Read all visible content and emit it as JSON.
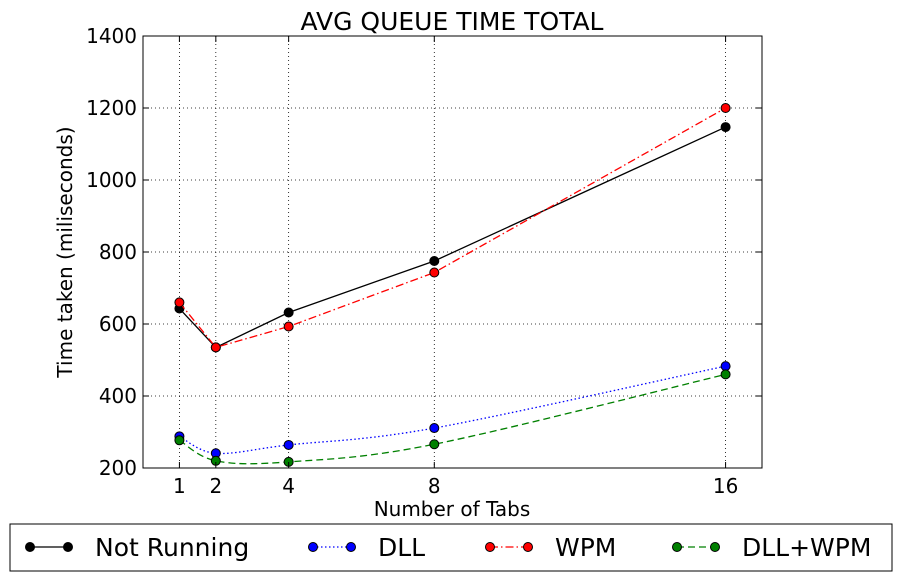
{
  "chart_data": {
    "type": "line",
    "title": "AVG QUEUE TIME TOTAL",
    "xlabel": "Number of Tabs",
    "ylabel": "Time taken (miliseconds)",
    "x": [
      1,
      2,
      4,
      8,
      16
    ],
    "xlim": [
      0,
      17
    ],
    "ylim": [
      200,
      1400
    ],
    "xticks": [
      1,
      2,
      4,
      8,
      16
    ],
    "yticks": [
      200,
      400,
      600,
      800,
      1000,
      1200,
      1400
    ],
    "grid": true,
    "legend_position": "bottom",
    "series": [
      {
        "name": "Not Running",
        "values": [
          643,
          535,
          632,
          775,
          1147
        ],
        "color": "#000000",
        "dash": "solid",
        "marker_color": "#000000"
      },
      {
        "name": "DLL",
        "values": [
          288,
          241,
          264,
          311,
          483
        ],
        "color": "#0000ff",
        "dash": "dotted",
        "marker_color": "#0000ff"
      },
      {
        "name": "WPM",
        "values": [
          660,
          535,
          593,
          743,
          1200
        ],
        "color": "#ff0000",
        "dash": "dashdot",
        "marker_color": "#ff0000"
      },
      {
        "name": "DLL+WPM",
        "values": [
          277,
          220,
          217,
          266,
          460
        ],
        "color": "#008000",
        "dash": "dashed",
        "marker_color": "#008000"
      }
    ]
  }
}
